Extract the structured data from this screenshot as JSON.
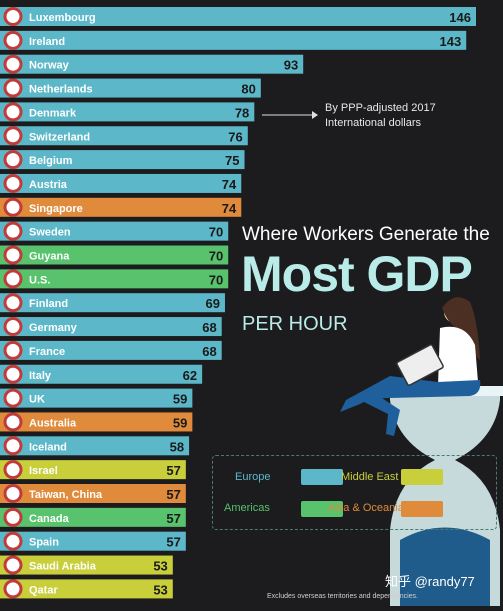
{
  "header": {
    "title_line1": "Where Workers Generate the",
    "title_line2": "Most GDP",
    "title_line3": "PER HOUR"
  },
  "note": {
    "line1": "By PPP-adjusted 2017",
    "line2": "International dollars"
  },
  "legend": {
    "europe": "Europe",
    "middle_east": "Middle East",
    "americas": "Americas",
    "asia_oceania": "Asia & Oceania"
  },
  "colors": {
    "Europe": "#5cb8c9",
    "Americas": "#58c26c",
    "Middle East": "#c9cf3a",
    "Asia & Oceania": "#e08a3c",
    "background": "#1c1c1e"
  },
  "footnote": "Excludes overseas territories and dependencies.",
  "watermark": "知乎 @randy77",
  "chart_data": {
    "type": "bar",
    "orientation": "horizontal",
    "title": "Where Workers Generate the Most GDP PER HOUR",
    "xlabel": "",
    "ylabel": "",
    "xlim": [
      0,
      146
    ],
    "categories": [
      "Luxembourg",
      "Ireland",
      "Norway",
      "Netherlands",
      "Denmark",
      "Switzerland",
      "Belgium",
      "Austria",
      "Singapore",
      "Sweden",
      "Guyana",
      "U.S.",
      "Finland",
      "Germany",
      "France",
      "Italy",
      "UK",
      "Australia",
      "Iceland",
      "Israel",
      "Taiwan, China",
      "Canada",
      "Spain",
      "Saudi Arabia",
      "Qatar"
    ],
    "values": [
      146,
      143,
      93,
      80,
      78,
      76,
      75,
      74,
      74,
      70,
      70,
      70,
      69,
      68,
      68,
      62,
      59,
      59,
      58,
      57,
      57,
      57,
      57,
      53,
      53
    ],
    "regions": [
      "Europe",
      "Europe",
      "Europe",
      "Europe",
      "Europe",
      "Europe",
      "Europe",
      "Europe",
      "Asia & Oceania",
      "Europe",
      "Americas",
      "Americas",
      "Europe",
      "Europe",
      "Europe",
      "Europe",
      "Europe",
      "Asia & Oceania",
      "Europe",
      "Middle East",
      "Asia & Oceania",
      "Americas",
      "Europe",
      "Middle East",
      "Middle East"
    ]
  }
}
